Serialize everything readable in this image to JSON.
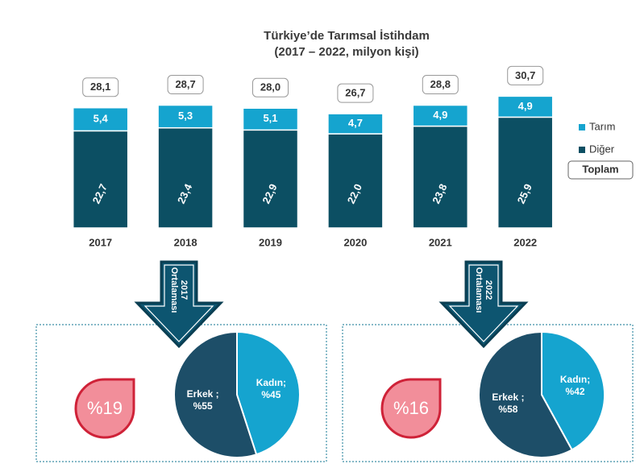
{
  "chart_data": [
    {
      "type": "bar",
      "title": "Türkiye’de Tarımsal İstihdam",
      "subtitle": "(2017 – 2022, milyon kişi)",
      "categories": [
        "2017",
        "2018",
        "2019",
        "2020",
        "2021",
        "2022"
      ],
      "stacked": true,
      "ylim": [
        0,
        32
      ],
      "series": [
        {
          "name": "Diğer",
          "color": "#0c4f63",
          "values": [
            22.7,
            23.4,
            22.9,
            22.0,
            23.8,
            25.9
          ],
          "value_labels": [
            "22,7",
            "23,4",
            "22,9",
            "22,0",
            "23,8",
            "25,9"
          ]
        },
        {
          "name": "Tarım",
          "color": "#15a4cf",
          "values": [
            5.4,
            5.3,
            5.1,
            4.7,
            4.9,
            4.9
          ],
          "value_labels": [
            "5,4",
            "5,3",
            "5,1",
            "4,7",
            "4,9",
            "4,9"
          ]
        }
      ],
      "total_name": "Toplam",
      "total_labels": [
        "28,1",
        "28,7",
        "28,0",
        "26,7",
        "28,8",
        "30,7"
      ],
      "legend": "right"
    },
    {
      "type": "pie",
      "title": "2017 Ortalaması",
      "annotation": "%19",
      "values": [
        45,
        55
      ],
      "value_labels": [
        "Kadın; %45",
        "Erkek ; %55"
      ],
      "colors": [
        "#15a4cf",
        "#1d4e68"
      ]
    },
    {
      "type": "pie",
      "title": "2022 Ortalaması",
      "annotation": "%16",
      "values": [
        42,
        58
      ],
      "value_labels": [
        "Kadın; %42",
        "Erkek ; %58"
      ],
      "colors": [
        "#15a4cf",
        "#1d4e68"
      ]
    }
  ]
}
